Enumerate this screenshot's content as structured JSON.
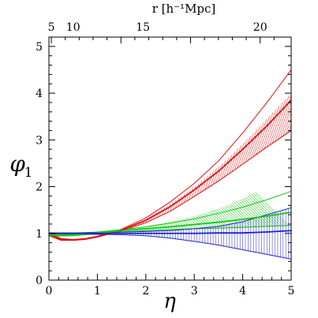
{
  "chart_data": {
    "type": "line",
    "xlabel": "η",
    "ylabel": "φ",
    "ylabel_subscript": "1",
    "top_axis_label": "r [h⁻¹Mpc]",
    "xlim": [
      0,
      5
    ],
    "ylim": [
      0,
      5.2
    ],
    "x_ticks": [
      0,
      1,
      2,
      3,
      4,
      5
    ],
    "y_ticks": [
      0,
      1,
      2,
      3,
      4,
      5
    ],
    "top_ticks": [
      {
        "label": "5",
        "eta": 0.05
      },
      {
        "label": "10",
        "eta": 0.5
      },
      {
        "label": "15",
        "eta": 1.94
      },
      {
        "label": "20",
        "eta": 4.36
      }
    ],
    "grid": false,
    "colors": {
      "red": "#e01010",
      "green": "#10c810",
      "blue": "#2020d0"
    },
    "series": [
      {
        "color": "red",
        "x": [
          0,
          0.25,
          0.5,
          0.75,
          1.0,
          1.5,
          2.0,
          2.5,
          3.0,
          3.5,
          4.0,
          4.5,
          5.0
        ],
        "y": [
          0.98,
          0.87,
          0.86,
          0.88,
          0.93,
          1.07,
          1.28,
          1.57,
          1.93,
          2.33,
          2.8,
          3.3,
          3.85
        ],
        "upper": [
          1.01,
          0.89,
          0.87,
          0.89,
          0.94,
          1.09,
          1.33,
          1.67,
          2.07,
          2.55,
          3.15,
          3.8,
          4.5
        ],
        "lower": [
          0.95,
          0.85,
          0.85,
          0.87,
          0.92,
          1.05,
          1.23,
          1.47,
          1.79,
          2.12,
          2.48,
          2.85,
          3.2
        ]
      },
      {
        "color": "green",
        "x": [
          0,
          0.5,
          1.0,
          1.5,
          2.0,
          2.5,
          3.0,
          3.5,
          4.0,
          4.5,
          5.0
        ],
        "y": [
          0.97,
          0.97,
          1.01,
          1.06,
          1.1,
          1.14,
          1.19,
          1.24,
          1.3,
          1.37,
          1.45
        ],
        "upper": [
          1.01,
          1.0,
          1.03,
          1.08,
          1.14,
          1.22,
          1.31,
          1.43,
          1.56,
          1.72,
          1.9
        ],
        "lower": [
          0.94,
          0.95,
          0.99,
          1.03,
          1.06,
          1.08,
          1.1,
          1.11,
          1.13,
          1.15,
          1.17
        ]
      },
      {
        "color": "blue",
        "x": [
          0,
          0.5,
          1.0,
          1.5,
          2.0,
          2.5,
          3.0,
          3.5,
          4.0,
          4.5,
          5.0
        ],
        "y": [
          1.0,
          1.0,
          1.0,
          1.0,
          1.0,
          1.0,
          1.0,
          1.01,
          1.01,
          1.03,
          1.06
        ],
        "upper": [
          1.01,
          1.01,
          1.02,
          1.03,
          1.04,
          1.06,
          1.1,
          1.15,
          1.25,
          1.4,
          1.55
        ],
        "lower": [
          0.99,
          0.99,
          0.98,
          0.97,
          0.95,
          0.9,
          0.83,
          0.75,
          0.65,
          0.55,
          0.45
        ]
      }
    ]
  }
}
